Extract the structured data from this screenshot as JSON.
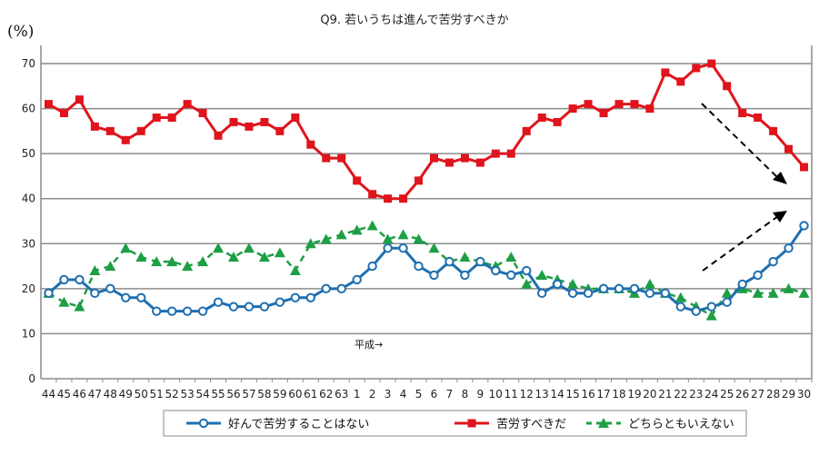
{
  "chart_data": {
    "type": "line",
    "title": "Q9. 若いうちは進んで苦労すべきか",
    "ylabel": "(%)",
    "xlabel": "",
    "ylim": [
      0,
      70
    ],
    "yticks": [
      0,
      10,
      20,
      30,
      40,
      50,
      60,
      70
    ],
    "grid": true,
    "legend_position": "bottom",
    "annotation": "平成→",
    "categories": [
      "44",
      "45",
      "46",
      "47",
      "48",
      "49",
      "50",
      "51",
      "52",
      "53",
      "54",
      "55",
      "56",
      "57",
      "58",
      "59",
      "60",
      "61",
      "62",
      "63",
      "1",
      "2",
      "3",
      "4",
      "5",
      "6",
      "7",
      "8",
      "9",
      "10",
      "11",
      "12",
      "13",
      "14",
      "15",
      "16",
      "17",
      "18",
      "19",
      "20",
      "21",
      "22",
      "23",
      "24",
      "25",
      "26",
      "27",
      "28",
      "29",
      "30"
    ],
    "series": [
      {
        "name": "好んで苦労することはない",
        "color": "#1f6fb0",
        "marker": "circle",
        "dash": false,
        "values": [
          19,
          22,
          22,
          19,
          20,
          18,
          18,
          15,
          15,
          15,
          15,
          17,
          16,
          16,
          16,
          17,
          18,
          18,
          20,
          20,
          22,
          25,
          29,
          29,
          25,
          23,
          26,
          23,
          26,
          24,
          23,
          24,
          19,
          21,
          19,
          19,
          20,
          20,
          20,
          19,
          19,
          16,
          15,
          16,
          17,
          21,
          23,
          26,
          29,
          34
        ]
      },
      {
        "name": "苦労すべきだ",
        "color": "#e0141c",
        "marker": "square",
        "dash": false,
        "values": [
          61,
          59,
          62,
          56,
          55,
          53,
          55,
          58,
          58,
          61,
          59,
          54,
          57,
          56,
          57,
          55,
          58,
          52,
          49,
          49,
          44,
          41,
          40,
          40,
          44,
          49,
          48,
          49,
          48,
          50,
          50,
          55,
          58,
          57,
          60,
          61,
          59,
          61,
          61,
          60,
          68,
          66,
          69,
          70,
          65,
          59,
          58,
          55,
          51,
          47
        ]
      },
      {
        "name": "どちらともいえない",
        "color": "#1e9e45",
        "marker": "triangle",
        "dash": true,
        "values": [
          19,
          17,
          16,
          24,
          25,
          29,
          27,
          26,
          26,
          25,
          26,
          29,
          27,
          29,
          27,
          28,
          24,
          30,
          31,
          32,
          33,
          34,
          31,
          32,
          31,
          29,
          26,
          27,
          26,
          25,
          27,
          21,
          23,
          22,
          21,
          20,
          20,
          20,
          19,
          21,
          19,
          18,
          16,
          14,
          19,
          20,
          19,
          19,
          20,
          19
        ]
      }
    ]
  }
}
